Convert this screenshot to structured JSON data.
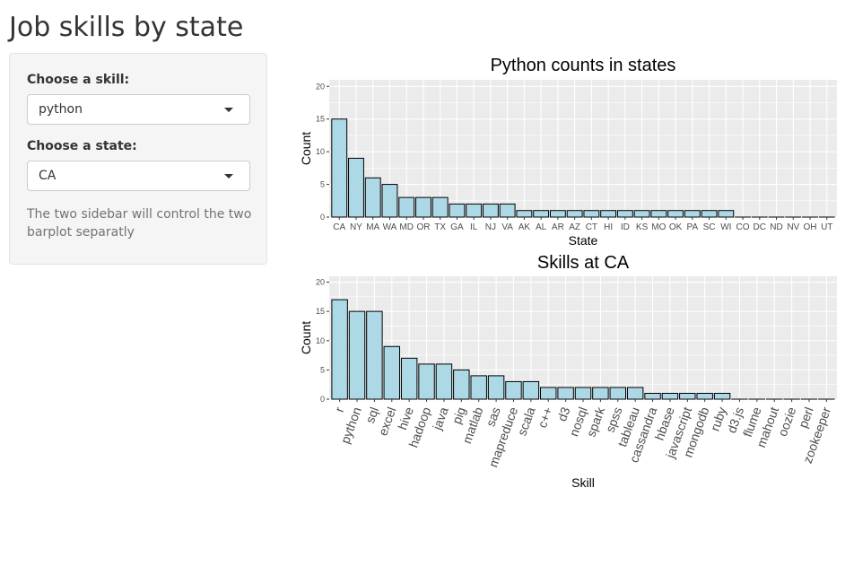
{
  "page": {
    "title": "Job skills by state"
  },
  "sidebar": {
    "skill_label": "Choose a skill:",
    "skill_value": "python",
    "state_label": "Choose a state:",
    "state_value": "CA",
    "help_text": "The two sidebar will control the two barplot separatly"
  },
  "colors": {
    "bar_fill": "#add8e6",
    "bar_stroke": "#000000",
    "panel": "#ebebeb",
    "grid": "#ffffff"
  },
  "chart_data": [
    {
      "type": "bar",
      "title": "Python counts in states",
      "xlabel": "State",
      "ylabel": "Count",
      "ylim": [
        0,
        21
      ],
      "yticks": [
        0,
        5,
        10,
        15,
        20
      ],
      "grid": true,
      "categories": [
        "CA",
        "NY",
        "MA",
        "WA",
        "MD",
        "OR",
        "TX",
        "GA",
        "IL",
        "NJ",
        "VA",
        "AK",
        "AL",
        "AR",
        "AZ",
        "CT",
        "HI",
        "ID",
        "KS",
        "MO",
        "OK",
        "PA",
        "SC",
        "WI",
        "CO",
        "DC",
        "ND",
        "NV",
        "OH",
        "UT"
      ],
      "values": [
        15,
        9,
        6,
        5,
        3,
        3,
        3,
        2,
        2,
        2,
        2,
        1,
        1,
        1,
        1,
        1,
        1,
        1,
        1,
        1,
        1,
        1,
        1,
        1,
        0,
        0,
        0,
        0,
        0,
        0
      ]
    },
    {
      "type": "bar",
      "title": "Skills at  CA",
      "xlabel": "Skill",
      "ylabel": "Count",
      "ylim": [
        0,
        21
      ],
      "yticks": [
        0,
        5,
        10,
        15,
        20
      ],
      "grid": true,
      "categories": [
        "r",
        "python",
        "sql",
        "excel",
        "hive",
        "hadoop",
        "java",
        "pig",
        "matlab",
        "sas",
        "mapreduce",
        "scala",
        "c++",
        "d3",
        "nosql",
        "spark",
        "spss",
        "tableau",
        "cassandra",
        "hbase",
        "javascript",
        "mongodb",
        "ruby",
        "d3.js",
        "flume",
        "mahout",
        "oozie",
        "perl",
        "zookeeper"
      ],
      "values": [
        17,
        15,
        15,
        9,
        7,
        6,
        6,
        5,
        4,
        4,
        3,
        3,
        2,
        2,
        2,
        2,
        2,
        2,
        1,
        1,
        1,
        1,
        1,
        0,
        0,
        0,
        0,
        0,
        0
      ]
    }
  ]
}
